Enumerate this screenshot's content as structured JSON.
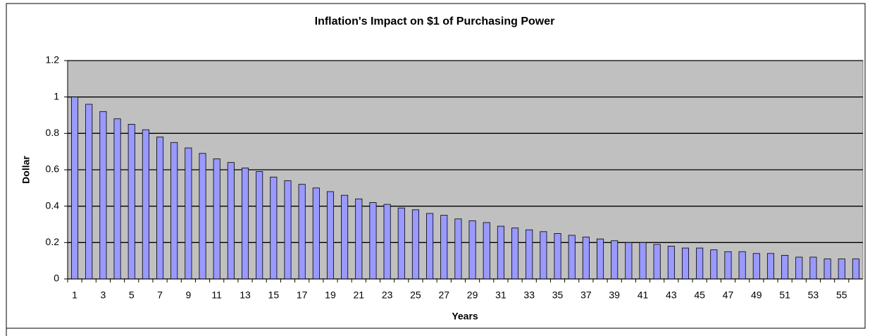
{
  "chart_data": {
    "type": "bar",
    "title": "Inflation's Impact on $1 of Purchasing Power",
    "x_label": "Years",
    "y_label": "Dollar",
    "categories": [
      "1",
      null,
      "3",
      null,
      "5",
      null,
      "7",
      null,
      "9",
      null,
      "11",
      null,
      "13",
      null,
      "15",
      null,
      "17",
      null,
      "19",
      null,
      "21",
      null,
      "23",
      null,
      "25",
      null,
      "27",
      null,
      "29",
      null,
      "31",
      null,
      "33",
      null,
      "35",
      null,
      "37",
      null,
      "39",
      null,
      "41",
      null,
      "43",
      null,
      "45",
      null,
      "47",
      null,
      "49",
      null,
      "51",
      null,
      "53",
      null,
      "55",
      null
    ],
    "values": [
      1,
      0.96,
      0.92,
      0.88,
      0.85,
      0.82,
      0.78,
      0.75,
      0.72,
      0.69,
      0.66,
      0.64,
      0.61,
      0.59,
      0.56,
      0.54,
      0.52,
      0.5,
      0.48,
      0.46,
      0.44,
      0.42,
      0.41,
      0.39,
      0.38,
      0.36,
      0.35,
      0.33,
      0.32,
      0.31,
      0.29,
      0.28,
      0.27,
      0.26,
      0.25,
      0.24,
      0.23,
      0.22,
      0.21,
      0.2,
      0.2,
      0.19,
      0.18,
      0.17,
      0.17,
      0.16,
      0.15,
      0.15,
      0.14,
      0.14,
      0.13,
      0.12,
      0.12,
      0.11,
      0.11,
      0.11
    ],
    "color": "#9999ff",
    "plot_background": "#c0c0c0",
    "ylim": [
      0,
      1.2
    ],
    "yticks": [
      0,
      0.2,
      0.4,
      0.6,
      0.8,
      1,
      1.2
    ],
    "grid": true
  }
}
